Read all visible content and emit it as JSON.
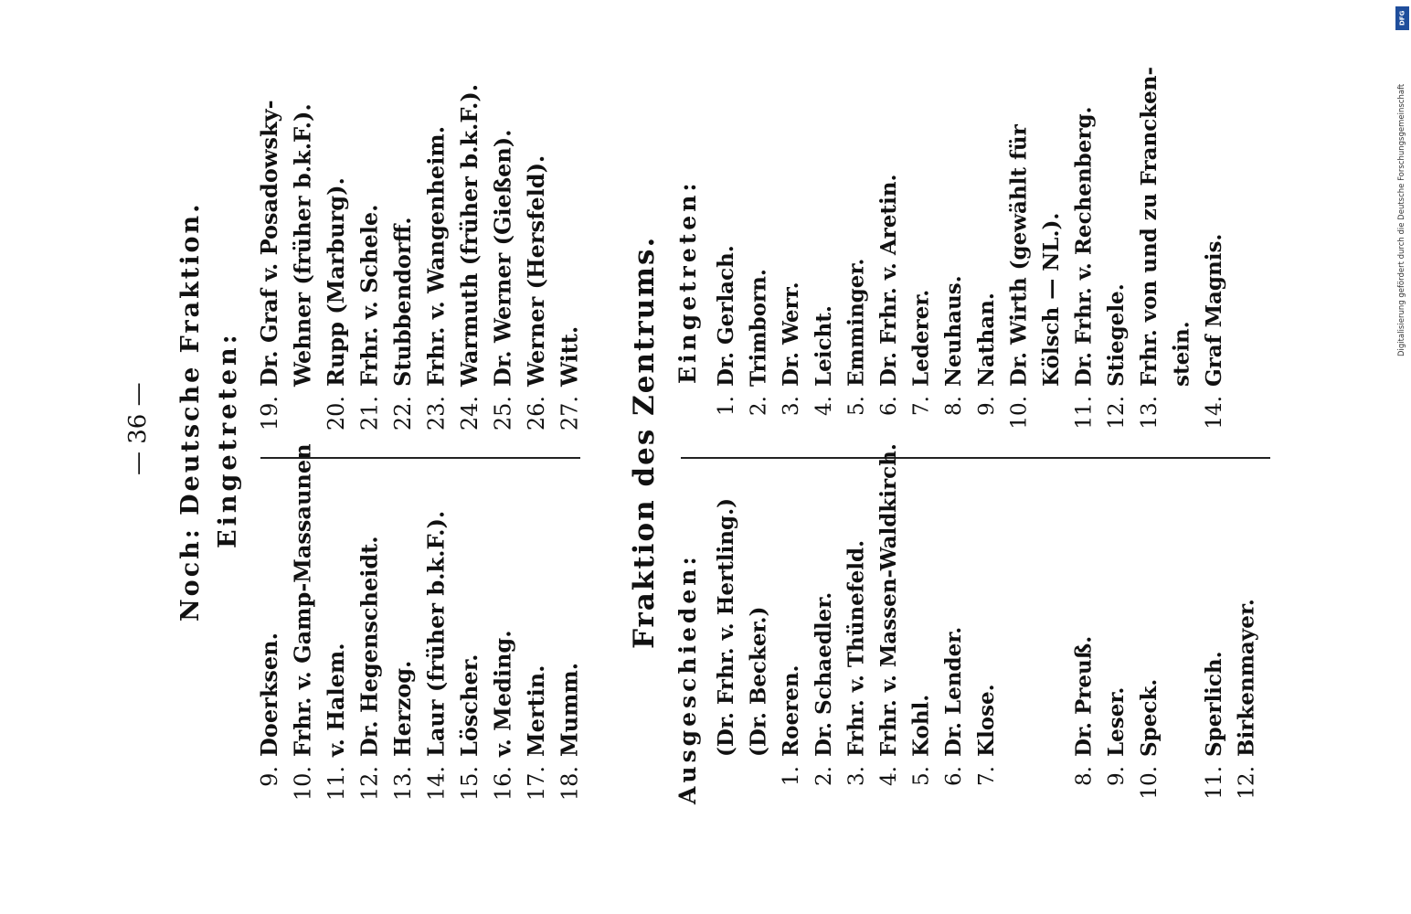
{
  "page_number": "— 36 —",
  "deutsche_fraktion": {
    "title": "Noch: Deutsche Fraktion.",
    "eingetreten_label": "Eingetreten:",
    "left": [
      {
        "n": "9.",
        "name": "Doerksen."
      },
      {
        "n": "10.",
        "name": "Frhr. v. Gamp-Massaunen"
      },
      {
        "n": "11.",
        "name": "v. Halem."
      },
      {
        "n": "12.",
        "name": "Dr. Hegenscheidt."
      },
      {
        "n": "13.",
        "name": "Herzog."
      },
      {
        "n": "14.",
        "name": "Laur (früher b.k.F.)."
      },
      {
        "n": "15.",
        "name": "Löscher."
      },
      {
        "n": "16.",
        "name": "v. Meding."
      },
      {
        "n": "17.",
        "name": "Mertin."
      },
      {
        "n": "18.",
        "name": "Mumm."
      }
    ],
    "right": [
      {
        "n": "19.",
        "name": "Dr. Graf v. Posadowsky-"
      },
      {
        "n": "",
        "name": "Wehner (früher b.k.F.)."
      },
      {
        "n": "20.",
        "name": "Rupp (Marburg)."
      },
      {
        "n": "21.",
        "name": "Frhr. v. Schele."
      },
      {
        "n": "22.",
        "name": "Stubbendorff."
      },
      {
        "n": "23.",
        "name": "Frhr. v. Wangenheim."
      },
      {
        "n": "24.",
        "name": "Warmuth (früher b.k.F.)."
      },
      {
        "n": "25.",
        "name": "Dr. Werner (Gießen)."
      },
      {
        "n": "26.",
        "name": "Werner (Hersfeld)."
      },
      {
        "n": "27.",
        "name": "Witt."
      }
    ]
  },
  "zentrum": {
    "title": "Fraktion des Zentrums.",
    "ausgeschieden_label": "Ausgeschieden:",
    "eingetreten_label": "Eingetreten:",
    "left": [
      {
        "n": "",
        "name": "(Dr. Frhr. v. Hertling.)"
      },
      {
        "n": "",
        "name": "(Dr. Becker.)"
      },
      {
        "n": "1.",
        "name": "Roeren."
      },
      {
        "n": "2.",
        "name": "Dr. Schaedler."
      },
      {
        "n": "3.",
        "name": "Frhr. v. Thünefeld."
      },
      {
        "n": "4.",
        "name": "Frhr. v. Massen-Waldkirch."
      },
      {
        "n": "5.",
        "name": "Kohl."
      },
      {
        "n": "6.",
        "name": "Dr. Lender."
      },
      {
        "n": "7.",
        "name": "Klose."
      },
      {
        "n": "",
        "name": ""
      },
      {
        "n": "",
        "name": ""
      },
      {
        "n": "8.",
        "name": "Dr. Preuß."
      },
      {
        "n": "9.",
        "name": "Leser."
      },
      {
        "n": "10.",
        "name": "Speck."
      },
      {
        "n": "",
        "name": ""
      },
      {
        "n": "11.",
        "name": "Sperlich."
      },
      {
        "n": "12.",
        "name": "Birkenmayer."
      }
    ],
    "right": [
      {
        "n": "1.",
        "name": "Dr. Gerlach."
      },
      {
        "n": "2.",
        "name": "Trimborn."
      },
      {
        "n": "3.",
        "name": "Dr. Werr."
      },
      {
        "n": "4.",
        "name": "Leicht."
      },
      {
        "n": "5.",
        "name": "Emminger."
      },
      {
        "n": "6.",
        "name": "Dr. Frhr. v. Aretin."
      },
      {
        "n": "7.",
        "name": "Lederer."
      },
      {
        "n": "8.",
        "name": "Neuhaus."
      },
      {
        "n": "9.",
        "name": "Nathan."
      },
      {
        "n": "10.",
        "name": "Dr. Wirth (gewählt für"
      },
      {
        "n": "",
        "name": "Kölsch — NL.)."
      },
      {
        "n": "11.",
        "name": "Dr. Frhr. v. Rechenberg."
      },
      {
        "n": "12.",
        "name": "Stiegele."
      },
      {
        "n": "13.",
        "name": "Frhr. von und zu Francken-"
      },
      {
        "n": "",
        "name": "stein."
      },
      {
        "n": "14.",
        "name": "Graf Magnis."
      }
    ]
  },
  "credit": "Digitalisierung gefördert durch die Deutsche Forschungsgemeinschaft",
  "badge": "DFG",
  "colors": {
    "ink": "#111111",
    "badge": "#1f4e9c"
  }
}
